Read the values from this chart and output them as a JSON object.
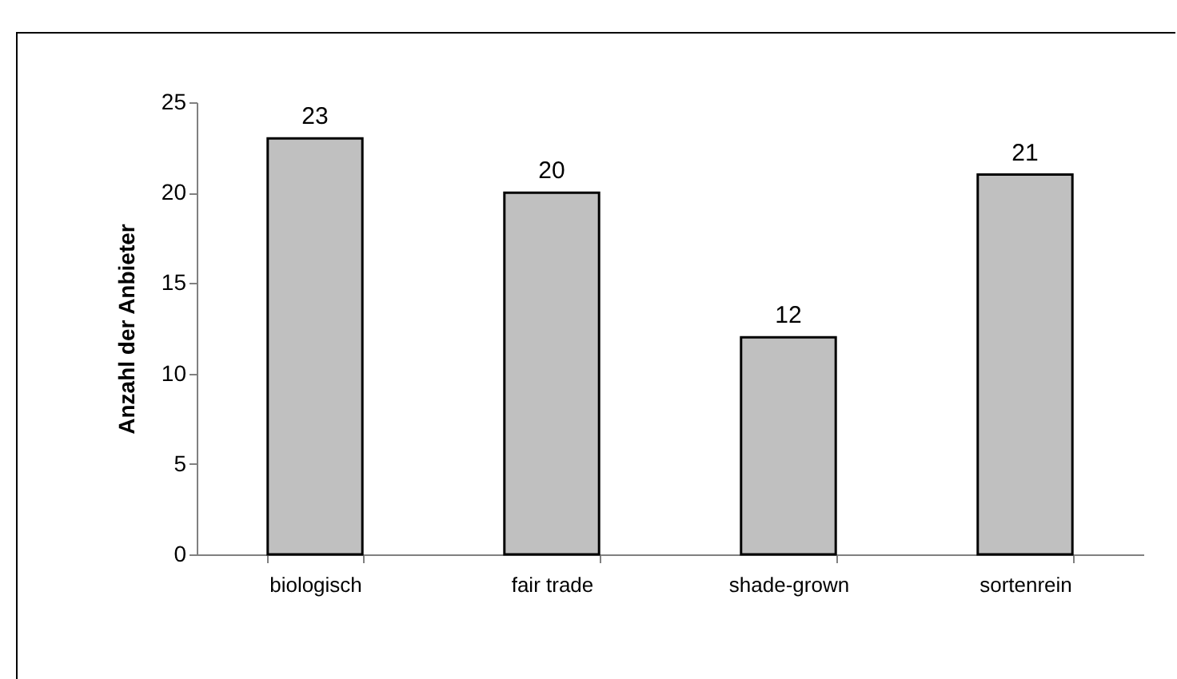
{
  "chart_data": {
    "type": "bar",
    "ylabel": "Anzahl der Anbieter",
    "categories": [
      "biologisch",
      "fair trade",
      "shade-grown",
      "sortenrein"
    ],
    "values": [
      23,
      20,
      12,
      21
    ],
    "color": "#c0c0c0",
    "ylim": [
      0,
      25
    ],
    "yticks": [
      0,
      5,
      10,
      15,
      20,
      25
    ],
    "grid": false,
    "data_labels": true
  }
}
